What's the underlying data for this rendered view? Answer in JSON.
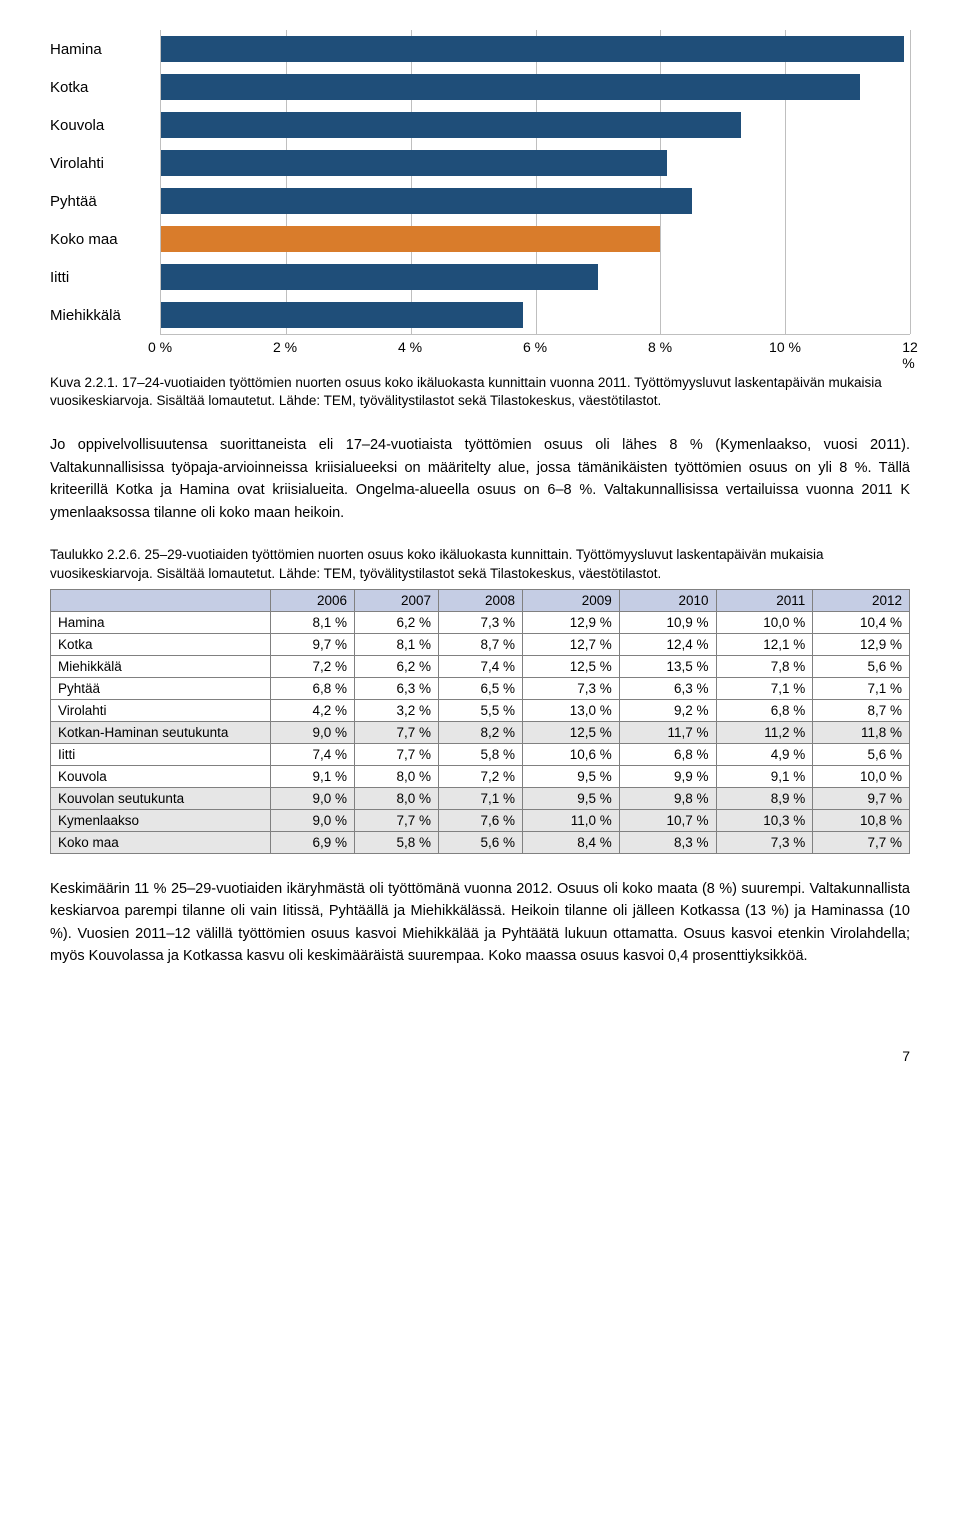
{
  "chart": {
    "max": 12,
    "ticks": [
      "0 %",
      "2 %",
      "4 %",
      "6 %",
      "8 %",
      "10 %",
      "12 %"
    ],
    "tick_vals": [
      0,
      2,
      4,
      6,
      8,
      10,
      12
    ],
    "bar_default_color": "#1f4e79",
    "bar_highlight_color": "#d97c2b",
    "rows": [
      {
        "label": "Hamina",
        "value": 11.9,
        "highlight": false
      },
      {
        "label": "Kotka",
        "value": 11.2,
        "highlight": false
      },
      {
        "label": "Kouvola",
        "value": 9.3,
        "highlight": false
      },
      {
        "label": "Virolahti",
        "value": 8.1,
        "highlight": false
      },
      {
        "label": "Pyhtää",
        "value": 8.5,
        "highlight": false
      },
      {
        "label": "Koko maa",
        "value": 8.0,
        "highlight": true
      },
      {
        "label": "Iitti",
        "value": 7.0,
        "highlight": false
      },
      {
        "label": "Miehikkälä",
        "value": 5.8,
        "highlight": false
      }
    ]
  },
  "figure_caption": "Kuva 2.2.1. 17–24-vuotiaiden työttömien nuorten osuus koko ikäluokasta kunnittain vuonna 2011. Työttömyysluvut laskentapäivän mukaisia vuosikeskiarvoja. Sisältää lomautetut. Lähde: TEM, työvälitystilastot sekä Tilastokeskus, väestötilastot.",
  "para1": "Jo oppivelvollisuutensa suorittaneista eli 17–24-vuotiaista työttömien osuus oli lähes 8 % (Kymenlaakso, vuosi 2011). Valtakunnallisissa työpaja-arvioinneissa kriisialueeksi on määritelty alue, jossa tämänikäisten työttömien osuus on yli 8 %. Tällä kriteerillä Kotka ja Hamina ovat kriisialueita. Ongelma-alueella osuus on 6–8 %. Valtakunnallisissa vertailuissa vuonna 2011 K ymenlaaksossa tilanne oli koko maan heikoin.",
  "table_caption": "Taulukko 2.2.6. 25–29-vuotiaiden työttömien nuorten osuus koko ikäluokasta kunnittain. Työttömyysluvut laskentapäivän mukaisia vuosikeskiarvoja. Sisältää lomautetut. Lähde: TEM, työvälitystilastot sekä Tilastokeskus, väestötilastot.",
  "table": {
    "head": [
      "",
      "2006",
      "2007",
      "2008",
      "2009",
      "2010",
      "2011",
      "2012"
    ],
    "rows": [
      {
        "shade": false,
        "c": [
          "Hamina",
          "8,1 %",
          "6,2 %",
          "7,3 %",
          "12,9 %",
          "10,9 %",
          "10,0 %",
          "10,4 %"
        ]
      },
      {
        "shade": false,
        "c": [
          "Kotka",
          "9,7 %",
          "8,1 %",
          "8,7 %",
          "12,7 %",
          "12,4 %",
          "12,1 %",
          "12,9 %"
        ]
      },
      {
        "shade": false,
        "c": [
          "Miehikkälä",
          "7,2 %",
          "6,2 %",
          "7,4 %",
          "12,5 %",
          "13,5 %",
          "7,8 %",
          "5,6 %"
        ]
      },
      {
        "shade": false,
        "c": [
          "Pyhtää",
          "6,8 %",
          "6,3 %",
          "6,5 %",
          "7,3 %",
          "6,3 %",
          "7,1 %",
          "7,1 %"
        ]
      },
      {
        "shade": false,
        "c": [
          "Virolahti",
          "4,2 %",
          "3,2 %",
          "5,5 %",
          "13,0 %",
          "9,2 %",
          "6,8 %",
          "8,7 %"
        ]
      },
      {
        "shade": true,
        "c": [
          "Kotkan-Haminan seutukunta",
          "9,0 %",
          "7,7 %",
          "8,2 %",
          "12,5 %",
          "11,7 %",
          "11,2 %",
          "11,8 %"
        ]
      },
      {
        "shade": false,
        "c": [
          "Iitti",
          "7,4 %",
          "7,7 %",
          "5,8 %",
          "10,6 %",
          "6,8 %",
          "4,9 %",
          "5,6 %"
        ]
      },
      {
        "shade": false,
        "c": [
          "Kouvola",
          "9,1 %",
          "8,0 %",
          "7,2 %",
          "9,5 %",
          "9,9 %",
          "9,1 %",
          "10,0 %"
        ]
      },
      {
        "shade": true,
        "c": [
          "Kouvolan seutukunta",
          "9,0 %",
          "8,0 %",
          "7,1 %",
          "9,5 %",
          "9,8 %",
          "8,9 %",
          "9,7 %"
        ]
      },
      {
        "shade": true,
        "c": [
          "Kymenlaakso",
          "9,0 %",
          "7,7 %",
          "7,6 %",
          "11,0 %",
          "10,7 %",
          "10,3 %",
          "10,8 %"
        ]
      },
      {
        "shade": true,
        "c": [
          "Koko maa",
          "6,9 %",
          "5,8 %",
          "5,6 %",
          "8,4 %",
          "8,3 %",
          "7,3 %",
          "7,7 %"
        ]
      }
    ]
  },
  "para2": "Keskimäärin 11 % 25–29-vuotiaiden ikäryhmästä oli työttömänä vuonna 2012. Osuus oli koko maata (8 %) suurempi. Valtakunnallista keskiarvoa parempi tilanne oli vain Iitissä, Pyhtäällä ja Miehikkälässä. Heikoin tilanne oli jälleen Kotkassa (13 %) ja Haminassa (10 %). Vuosien 2011–12 välillä työttömien osuus kasvoi Miehikkälää ja Pyhtäätä lukuun ottamatta. Osuus kasvoi etenkin Virolahdella; myös Kouvolassa ja Kotkassa kasvu oli keskimääräistä suurempaa. Koko maassa osuus kasvoi 0,4 prosenttiyksikköä.",
  "page_number": "7"
}
